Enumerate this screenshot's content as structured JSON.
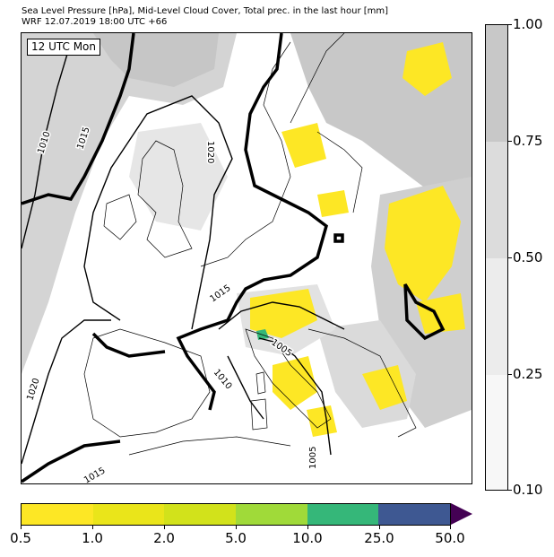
{
  "header": {
    "line1": "Sea Level Pressure [hPa], Mid-Level Cloud Cover, Total prec. in the last hour [mm]",
    "line2": "WRF 12.07.2019 18:00 UTC +66"
  },
  "map": {
    "time_label": "12 UTC Mon",
    "isobar_labels": [
      "1010",
      "1015",
      "1020",
      "1020",
      "1015",
      "1005",
      "1010",
      "1020",
      "1015",
      "1005"
    ]
  },
  "cloud_colorbar": {
    "ticks": [
      "1.00",
      "0.75",
      "0.50",
      "0.25",
      "0.10"
    ],
    "colors": [
      "#c8c8c8",
      "#dcdcdc",
      "#ececec",
      "#f7f7f7"
    ]
  },
  "precip_colorbar": {
    "ticks": [
      "0.5",
      "1.0",
      "2.0",
      "5.0",
      "10.0",
      "25.0",
      "50.0"
    ],
    "colors": [
      "#fde725",
      "#eae51a",
      "#d2e21b",
      "#a0da39",
      "#35b779",
      "#3e5892",
      "#440154"
    ]
  }
}
